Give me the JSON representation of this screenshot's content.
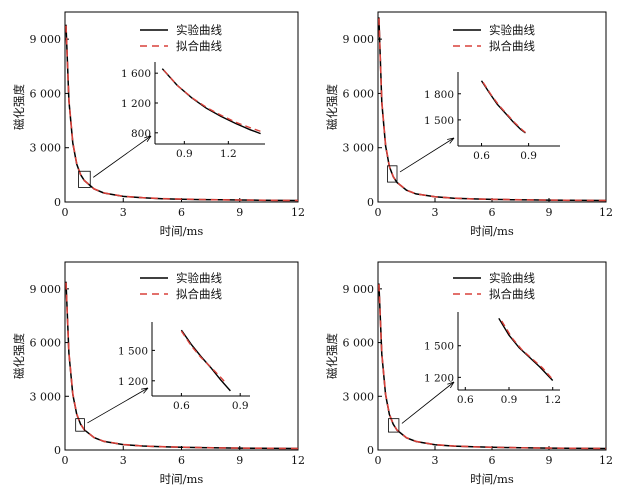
{
  "chart_data": [
    {
      "type": "line",
      "xlabel": "时间/ms",
      "ylabel": "磁化强度",
      "xlim": [
        0,
        12
      ],
      "ylim": [
        0,
        10500
      ],
      "xticks": [
        0,
        3,
        6,
        9,
        12
      ],
      "xtick_labels": [
        "0",
        "3",
        "6",
        "9",
        "12"
      ],
      "yticks": [
        0,
        3000,
        6000,
        9000
      ],
      "ytick_labels": [
        "0",
        "3 000",
        "6 000",
        "9 000"
      ],
      "legend_position": "top-right",
      "series": [
        {
          "name": "实验曲线",
          "style": "solid",
          "color": "#000000",
          "x": [
            0.05,
            0.2,
            0.4,
            0.6,
            0.8,
            1.0,
            1.5,
            2,
            3,
            4,
            5,
            6,
            7,
            8,
            9,
            10,
            11,
            12
          ],
          "y": [
            9800,
            5600,
            3250,
            2100,
            1520,
            1180,
            720,
            500,
            310,
            230,
            185,
            155,
            135,
            120,
            108,
            98,
            90,
            83
          ]
        },
        {
          "name": "拟合曲线",
          "style": "dashed",
          "color": "#d9413a",
          "x": [
            0.05,
            0.2,
            0.4,
            0.6,
            0.8,
            1.0,
            1.5,
            2,
            3,
            4,
            5,
            6,
            7,
            8,
            9,
            10,
            11,
            12
          ],
          "y": [
            9750,
            5650,
            3300,
            2120,
            1530,
            1185,
            725,
            505,
            315,
            235,
            188,
            158,
            137,
            121,
            109,
            99,
            91,
            84
          ]
        }
      ],
      "zoom_box": {
        "x": [
          0.7,
          1.3
        ],
        "y": [
          800,
          1700
        ]
      },
      "inset": {
        "xlim": [
          0.7,
          1.45
        ],
        "ylim": [
          650,
          1750
        ],
        "xticks": [
          0.9,
          1.2
        ],
        "xtick_labels": [
          "0.9",
          "1.2"
        ],
        "yticks": [
          800,
          1200,
          1600
        ],
        "ytick_labels": [
          "800",
          "1 200",
          "1 600"
        ],
        "series": [
          {
            "x": [
              0.75,
              0.85,
              0.95,
              1.05,
              1.15,
              1.25,
              1.35,
              1.42
            ],
            "y": [
              1660,
              1440,
              1270,
              1130,
              1020,
              925,
              840,
              790
            ]
          },
          {
            "x": [
              0.76,
              0.86,
              0.96,
              1.06,
              1.16,
              1.26,
              1.36,
              1.42
            ],
            "y": [
              1640,
              1420,
              1260,
              1130,
              1025,
              935,
              860,
              820
            ]
          }
        ]
      }
    },
    {
      "type": "line",
      "xlabel": "时间/ms",
      "ylabel": "磁化强度",
      "xlim": [
        0,
        12
      ],
      "ylim": [
        0,
        10500
      ],
      "xticks": [
        0,
        3,
        6,
        9,
        12
      ],
      "xtick_labels": [
        "0",
        "3",
        "6",
        "9",
        "12"
      ],
      "yticks": [
        0,
        3000,
        6000,
        9000
      ],
      "ytick_labels": [
        "0",
        "3 000",
        "6 000",
        "9 000"
      ],
      "legend_position": "top-right",
      "series": [
        {
          "name": "实验曲线",
          "style": "solid",
          "color": "#000000",
          "x": [
            0.05,
            0.2,
            0.4,
            0.6,
            0.8,
            1.0,
            1.5,
            2,
            3,
            4,
            5,
            6,
            7,
            8,
            9,
            10,
            11,
            12
          ],
          "y": [
            10200,
            5500,
            3100,
            1950,
            1400,
            1080,
            650,
            450,
            285,
            210,
            170,
            145,
            128,
            115,
            104,
            95,
            88,
            82
          ]
        },
        {
          "name": "拟合曲线",
          "style": "dashed",
          "color": "#d9413a",
          "x": [
            0.05,
            0.2,
            0.4,
            0.6,
            0.8,
            1.0,
            1.5,
            2,
            3,
            4,
            5,
            6,
            7,
            8,
            9,
            10,
            11,
            12
          ],
          "y": [
            10150,
            5550,
            3150,
            1970,
            1410,
            1085,
            655,
            455,
            290,
            214,
            173,
            147,
            130,
            116,
            105,
            96,
            89,
            83
          ]
        }
      ],
      "zoom_box": {
        "x": [
          0.5,
          1.0
        ],
        "y": [
          1100,
          2000
        ]
      },
      "inset": {
        "xlim": [
          0.45,
          1.1
        ],
        "ylim": [
          1200,
          2050
        ],
        "xticks": [
          0.6,
          0.9
        ],
        "xtick_labels": [
          "0.6",
          "0.9"
        ],
        "yticks": [
          1500,
          1800
        ],
        "ytick_labels": [
          "1 500",
          "1 800"
        ],
        "series": [
          {
            "x": [
              0.6,
              0.65,
              0.7,
              0.75,
              0.8,
              0.85,
              0.88
            ],
            "y": [
              1950,
              1810,
              1680,
              1580,
              1480,
              1390,
              1350
            ]
          },
          {
            "x": [
              0.61,
              0.66,
              0.71,
              0.76,
              0.81,
              0.86,
              0.88
            ],
            "y": [
              1930,
              1790,
              1670,
              1570,
              1470,
              1385,
              1355
            ]
          }
        ]
      }
    },
    {
      "type": "line",
      "xlabel": "时间/ms",
      "ylabel": "磁化强度",
      "xlim": [
        0,
        12
      ],
      "ylim": [
        0,
        10500
      ],
      "xticks": [
        0,
        3,
        6,
        9,
        12
      ],
      "xtick_labels": [
        "0",
        "3",
        "6",
        "9",
        "12"
      ],
      "yticks": [
        0,
        3000,
        6000,
        9000
      ],
      "ytick_labels": [
        "0",
        "3 000",
        "6 000",
        "9 000"
      ],
      "legend_position": "top-right",
      "series": [
        {
          "name": "实验曲线",
          "style": "solid",
          "color": "#000000",
          "x": [
            0.05,
            0.2,
            0.4,
            0.6,
            0.8,
            1.0,
            1.5,
            2,
            3,
            4,
            5,
            6,
            7,
            8,
            9,
            10,
            11,
            12
          ],
          "y": [
            9400,
            5400,
            3100,
            2000,
            1450,
            1120,
            690,
            480,
            300,
            222,
            180,
            152,
            133,
            118,
            106,
            97,
            89,
            82
          ]
        },
        {
          "name": "拟合曲线",
          "style": "dashed",
          "color": "#d9413a",
          "x": [
            0.05,
            0.2,
            0.4,
            0.6,
            0.8,
            1.0,
            1.5,
            2,
            3,
            4,
            5,
            6,
            7,
            8,
            9,
            10,
            11,
            12
          ],
          "y": [
            9350,
            5450,
            3150,
            2020,
            1460,
            1125,
            695,
            485,
            305,
            226,
            183,
            154,
            135,
            119,
            107,
            98,
            90,
            83
          ]
        }
      ],
      "zoom_box": {
        "x": [
          0.55,
          1.0
        ],
        "y": [
          1050,
          1750
        ]
      },
      "inset": {
        "xlim": [
          0.45,
          0.95
        ],
        "ylim": [
          1050,
          1780
        ],
        "xticks": [
          0.6,
          0.9
        ],
        "xtick_labels": [
          "0.6",
          "0.9"
        ],
        "yticks": [
          1200,
          1500
        ],
        "ytick_labels": [
          "1 200",
          "1 500"
        ],
        "series": [
          {
            "x": [
              0.6,
              0.65,
              0.7,
              0.75,
              0.8,
              0.85
            ],
            "y": [
              1700,
              1560,
              1440,
              1330,
              1210,
              1100
            ]
          },
          {
            "x": [
              0.6,
              0.65,
              0.7,
              0.75,
              0.8,
              0.83
            ],
            "y": [
              1690,
              1545,
              1430,
              1335,
              1235,
              1170
            ]
          }
        ]
      }
    },
    {
      "type": "line",
      "xlabel": "时间/ms",
      "ylabel": "磁化强度",
      "xlim": [
        0,
        12
      ],
      "ylim": [
        0,
        10500
      ],
      "xticks": [
        0,
        3,
        6,
        9,
        12
      ],
      "xtick_labels": [
        "0",
        "3",
        "6",
        "9",
        "12"
      ],
      "yticks": [
        0,
        3000,
        6000,
        9000
      ],
      "ytick_labels": [
        "0",
        "3 000",
        "6 000",
        "9 000"
      ],
      "legend_position": "top-right",
      "series": [
        {
          "name": "实验曲线",
          "style": "solid",
          "color": "#000000",
          "x": [
            0.05,
            0.2,
            0.4,
            0.6,
            0.8,
            1.0,
            1.5,
            2,
            3,
            4,
            5,
            6,
            7,
            8,
            9,
            10,
            11,
            12
          ],
          "y": [
            9300,
            5350,
            3080,
            1980,
            1440,
            1110,
            680,
            475,
            298,
            220,
            178,
            150,
            132,
            117,
            105,
            96,
            88,
            81
          ]
        },
        {
          "name": "拟合曲线",
          "style": "dashed",
          "color": "#d9413a",
          "x": [
            0.05,
            0.2,
            0.4,
            0.6,
            0.8,
            1.0,
            1.5,
            2,
            3,
            4,
            5,
            6,
            7,
            8,
            9,
            10,
            11,
            12
          ],
          "y": [
            9250,
            5400,
            3130,
            2000,
            1450,
            1115,
            685,
            480,
            303,
            224,
            181,
            152,
            134,
            118,
            106,
            97,
            89,
            82
          ]
        }
      ],
      "zoom_box": {
        "x": [
          0.55,
          1.1
        ],
        "y": [
          1000,
          1750
        ]
      },
      "inset": {
        "xlim": [
          0.55,
          1.25
        ],
        "ylim": [
          1080,
          1820
        ],
        "xticks": [
          0.6,
          0.9,
          1.2
        ],
        "xtick_labels": [
          "0.6",
          "0.9",
          "1.2"
        ],
        "yticks": [
          1200,
          1500
        ],
        "ytick_labels": [
          "1 200",
          "1 500"
        ],
        "series": [
          {
            "x": [
              0.83,
              0.9,
              0.97,
              1.04,
              1.11,
              1.2
            ],
            "y": [
              1760,
              1600,
              1480,
              1390,
              1300,
              1170
            ]
          },
          {
            "x": [
              0.85,
              0.92,
              0.99,
              1.06,
              1.13,
              1.2
            ],
            "y": [
              1735,
              1575,
              1460,
              1375,
              1290,
              1180
            ]
          }
        ]
      }
    }
  ]
}
